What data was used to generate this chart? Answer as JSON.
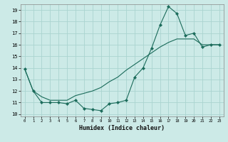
{
  "xlabel": "Humidex (Indice chaleur)",
  "ylabel": "",
  "bg_color": "#cceae7",
  "grid_color": "#aad4d0",
  "line_color": "#1a6b5a",
  "xlim": [
    -0.5,
    23.5
  ],
  "ylim": [
    9.8,
    19.5
  ],
  "yticks": [
    10,
    11,
    12,
    13,
    14,
    15,
    16,
    17,
    18,
    19
  ],
  "xticks": [
    0,
    1,
    2,
    3,
    4,
    5,
    6,
    7,
    8,
    9,
    10,
    11,
    12,
    13,
    14,
    15,
    16,
    17,
    18,
    19,
    20,
    21,
    22,
    23
  ],
  "series1_x": [
    0,
    1,
    2,
    3,
    4,
    5,
    6,
    7,
    8,
    9,
    10,
    11,
    12,
    13,
    14,
    15,
    16,
    17,
    18,
    19,
    20,
    21,
    22,
    23
  ],
  "series1_y": [
    13.9,
    12.0,
    11.0,
    11.0,
    11.0,
    10.9,
    11.2,
    10.5,
    10.4,
    10.3,
    10.9,
    11.0,
    11.2,
    13.2,
    14.0,
    15.7,
    17.7,
    19.3,
    18.7,
    16.8,
    17.0,
    15.8,
    16.0,
    16.0
  ],
  "series2_x": [
    0,
    1,
    2,
    3,
    4,
    5,
    6,
    7,
    8,
    9,
    10,
    11,
    12,
    13,
    14,
    15,
    16,
    17,
    18,
    19,
    20,
    21,
    22,
    23
  ],
  "series2_y": [
    13.9,
    12.0,
    11.5,
    11.2,
    11.2,
    11.2,
    11.6,
    11.8,
    12.0,
    12.3,
    12.8,
    13.2,
    13.8,
    14.3,
    14.8,
    15.3,
    15.8,
    16.2,
    16.5,
    16.5,
    16.5,
    16.0,
    16.0,
    16.0
  ]
}
